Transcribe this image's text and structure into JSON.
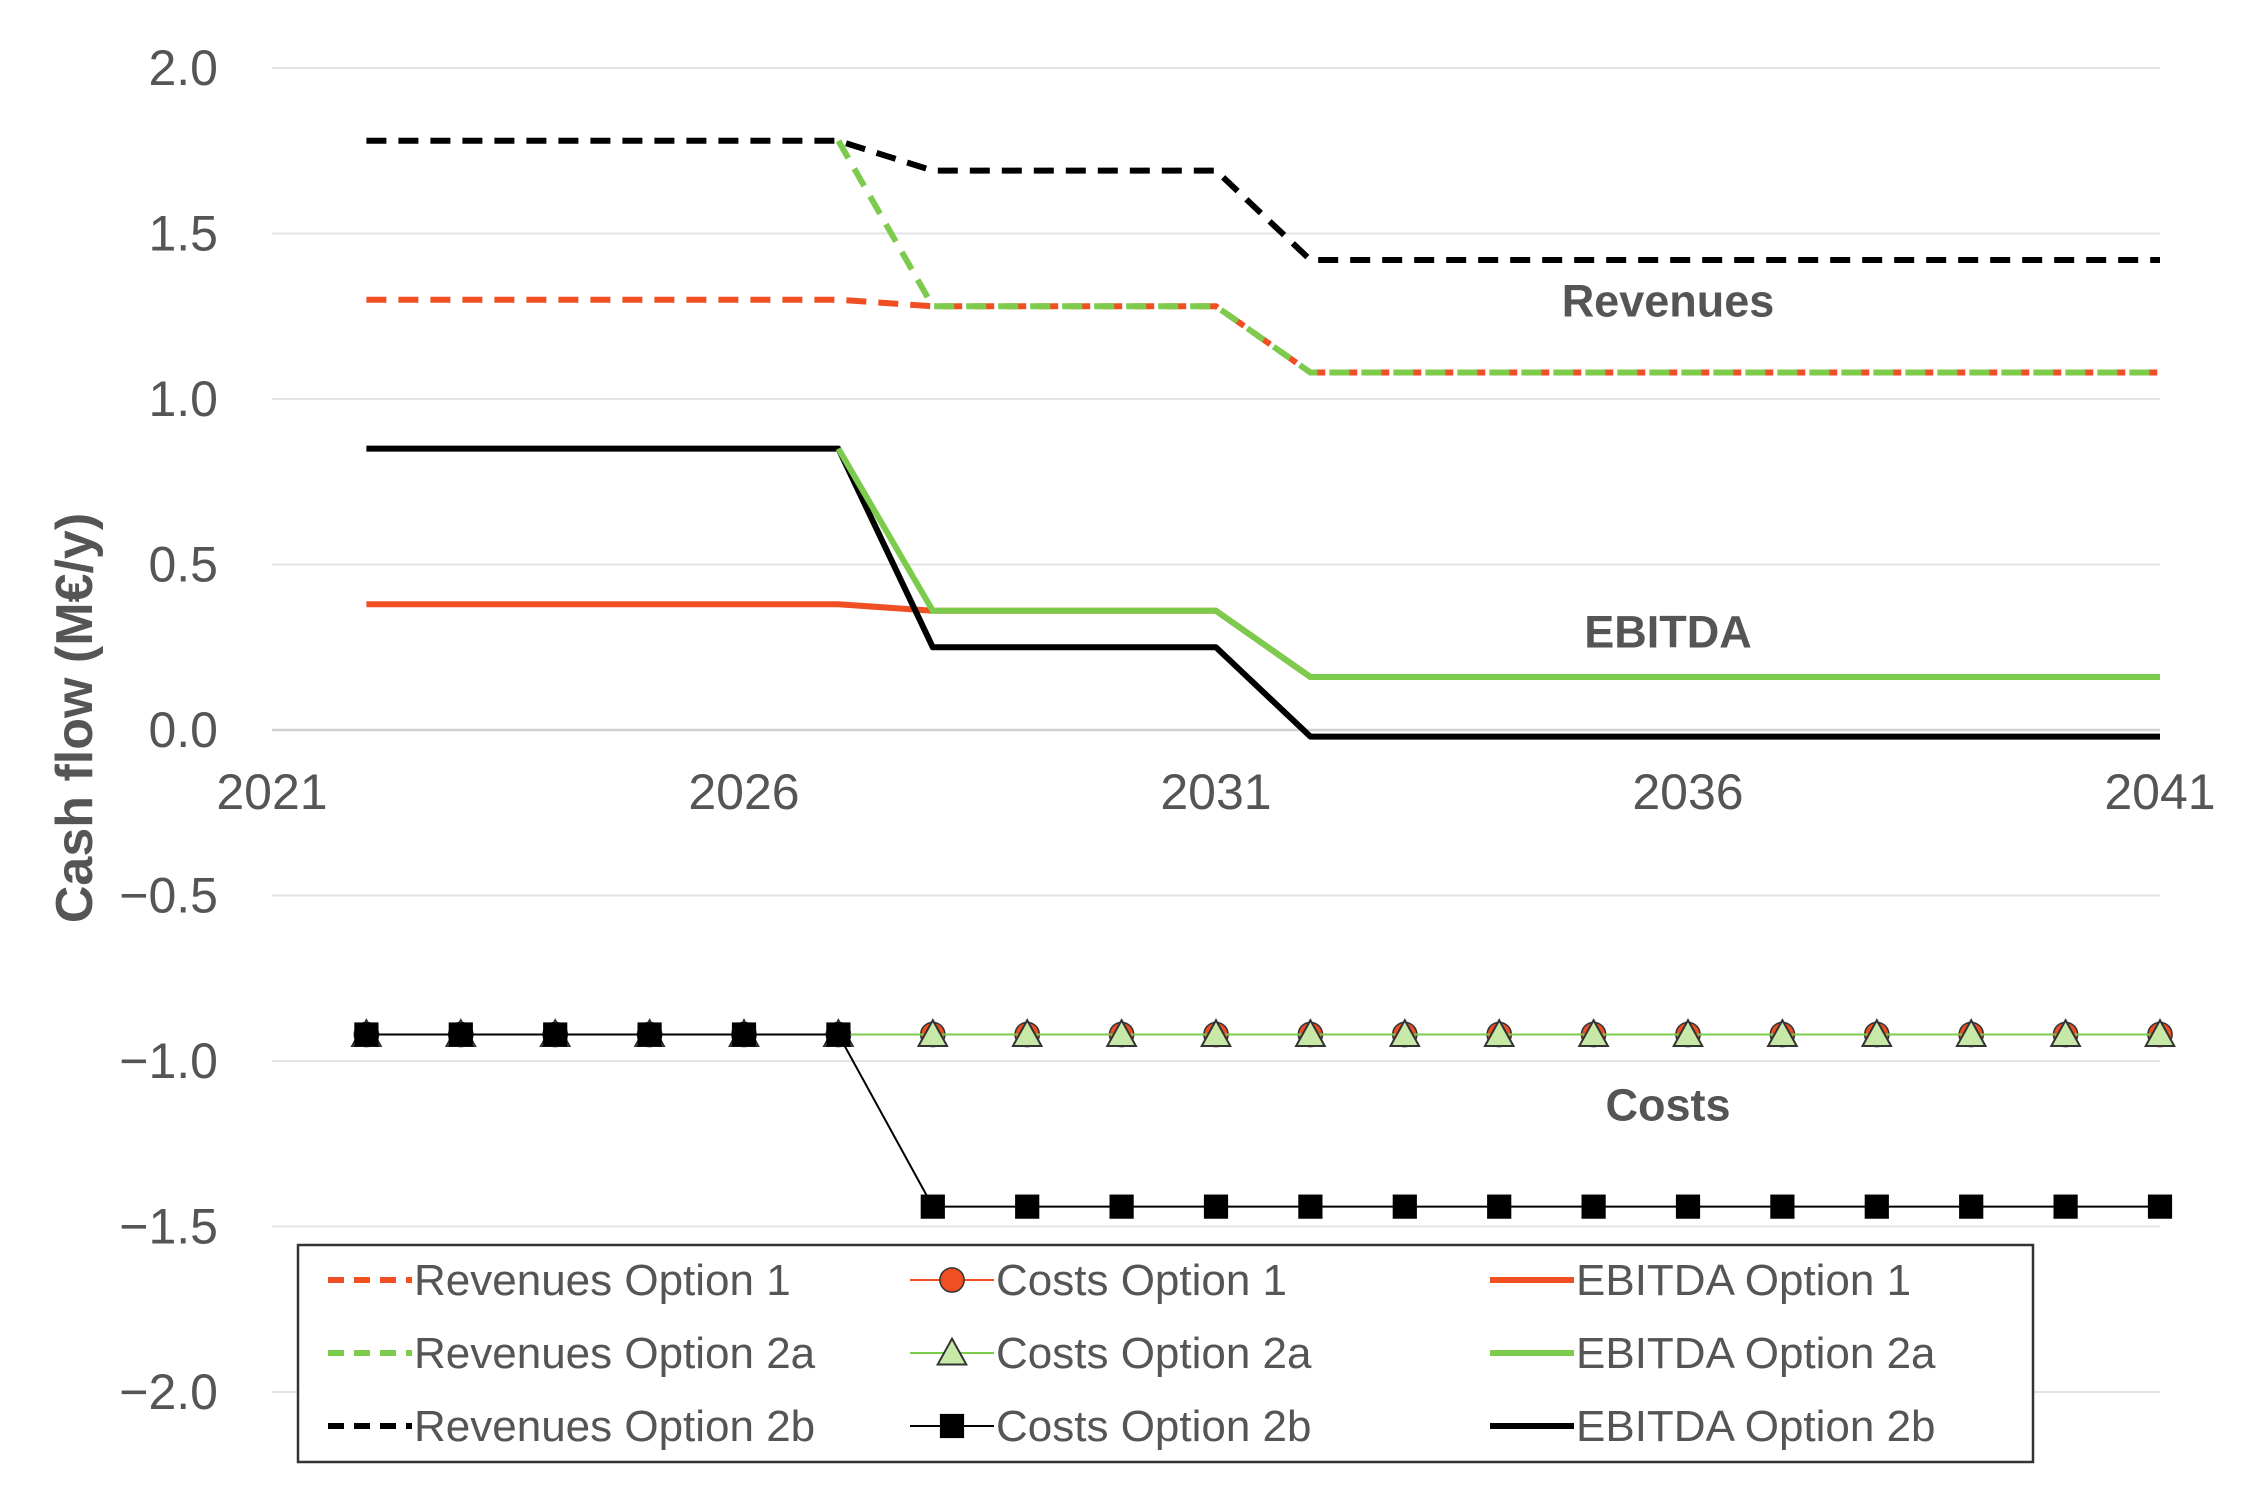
{
  "chart_data": {
    "type": "line",
    "title": "",
    "xlabel": "",
    "ylabel": "Cash flow (M€/y)",
    "xlim": [
      2021,
      2041
    ],
    "ylim": [
      -2.0,
      2.0
    ],
    "x_ticks": [
      "2021",
      "2026",
      "2031",
      "2036",
      "2041"
    ],
    "y_ticks": [
      "2.0",
      "1.5",
      "1.0",
      "0.5",
      "0.0",
      "−0.5",
      "−1.0",
      "−1.5",
      "−2.0"
    ],
    "grid": "horizontal",
    "legend_position": "bottom",
    "annotations": [
      {
        "text": "Revenues",
        "x": 2036,
        "y": 1.25
      },
      {
        "text": "EBITDA",
        "x": 2036,
        "y": 0.25
      },
      {
        "text": "Costs",
        "x": 2036,
        "y": -1.18
      }
    ],
    "x": [
      2022,
      2023,
      2024,
      2025,
      2026,
      2027,
      2028,
      2029,
      2030,
      2031,
      2032,
      2033,
      2034,
      2035,
      2036,
      2037,
      2038,
      2039,
      2040,
      2041
    ],
    "series": [
      {
        "name": "Revenues Option 1",
        "group": "revenues",
        "style": "dashed",
        "color": "#F04E23",
        "marker": "none",
        "values": [
          1.3,
          1.3,
          1.3,
          1.3,
          1.3,
          1.3,
          1.28,
          1.28,
          1.28,
          1.28,
          1.08,
          1.08,
          1.08,
          1.08,
          1.08,
          1.08,
          1.08,
          1.08,
          1.08,
          1.08
        ]
      },
      {
        "name": "Costs Option 1",
        "group": "costs",
        "style": "thin",
        "color": "#F04E23",
        "marker": "circle",
        "values": [
          -0.92,
          -0.92,
          -0.92,
          -0.92,
          -0.92,
          -0.92,
          -0.92,
          -0.92,
          -0.92,
          -0.92,
          -0.92,
          -0.92,
          -0.92,
          -0.92,
          -0.92,
          -0.92,
          -0.92,
          -0.92,
          -0.92,
          -0.92
        ]
      },
      {
        "name": "EBITDA Option 1",
        "group": "ebitda",
        "style": "solid",
        "color": "#F04E23",
        "marker": "none",
        "values": [
          0.38,
          0.38,
          0.38,
          0.38,
          0.38,
          0.38,
          0.36,
          0.36,
          0.36,
          0.36,
          0.16,
          0.16,
          0.16,
          0.16,
          0.16,
          0.16,
          0.16,
          0.16,
          0.16,
          0.16
        ]
      },
      {
        "name": "Revenues Option 2a",
        "group": "revenues",
        "style": "dashed",
        "color": "#7DCB4C",
        "marker": "none",
        "values": [
          null,
          null,
          null,
          null,
          null,
          1.78,
          1.28,
          1.28,
          1.28,
          1.28,
          1.08,
          1.08,
          1.08,
          1.08,
          1.08,
          1.08,
          1.08,
          1.08,
          1.08,
          1.08
        ]
      },
      {
        "name": "Costs Option 2a",
        "group": "costs",
        "style": "thin",
        "color": "#7DCB4C",
        "marker": "triangle",
        "values": [
          -0.92,
          -0.92,
          -0.92,
          -0.92,
          -0.92,
          -0.92,
          -0.92,
          -0.92,
          -0.92,
          -0.92,
          -0.92,
          -0.92,
          -0.92,
          -0.92,
          -0.92,
          -0.92,
          -0.92,
          -0.92,
          -0.92,
          -0.92
        ]
      },
      {
        "name": "EBITDA Option 2a",
        "group": "ebitda",
        "style": "solid",
        "color": "#7DCB4C",
        "marker": "none",
        "values": [
          null,
          null,
          null,
          null,
          null,
          0.85,
          0.36,
          0.36,
          0.36,
          0.36,
          0.16,
          0.16,
          0.16,
          0.16,
          0.16,
          0.16,
          0.16,
          0.16,
          0.16,
          0.16
        ]
      },
      {
        "name": "Revenues Option 2b",
        "group": "revenues",
        "style": "dashed",
        "color": "#000000",
        "marker": "none",
        "values": [
          1.78,
          1.78,
          1.78,
          1.78,
          1.78,
          1.78,
          1.69,
          1.69,
          1.69,
          1.69,
          1.42,
          1.42,
          1.42,
          1.42,
          1.42,
          1.42,
          1.42,
          1.42,
          1.42,
          1.42
        ]
      },
      {
        "name": "Costs Option 2b",
        "group": "costs",
        "style": "thin",
        "color": "#000000",
        "marker": "square",
        "values": [
          -0.92,
          -0.92,
          -0.92,
          -0.92,
          -0.92,
          -0.92,
          -1.44,
          -1.44,
          -1.44,
          -1.44,
          -1.44,
          -1.44,
          -1.44,
          -1.44,
          -1.44,
          -1.44,
          -1.44,
          -1.44,
          -1.44,
          -1.44
        ]
      },
      {
        "name": "EBITDA Option 2b",
        "group": "ebitda",
        "style": "solid",
        "color": "#000000",
        "marker": "none",
        "values": [
          0.85,
          0.85,
          0.85,
          0.85,
          0.85,
          0.85,
          0.25,
          0.25,
          0.25,
          0.25,
          -0.02,
          -0.02,
          -0.02,
          -0.02,
          -0.02,
          -0.02,
          -0.02,
          -0.02,
          -0.02,
          -0.02
        ]
      }
    ],
    "legend_order": [
      "Revenues Option 1",
      "Costs Option 1",
      "EBITDA Option 1",
      "Revenues Option 2a",
      "Costs Option 2a",
      "EBITDA Option 2a",
      "Revenues Option 2b",
      "Costs Option 2b",
      "EBITDA Option 2b"
    ]
  }
}
